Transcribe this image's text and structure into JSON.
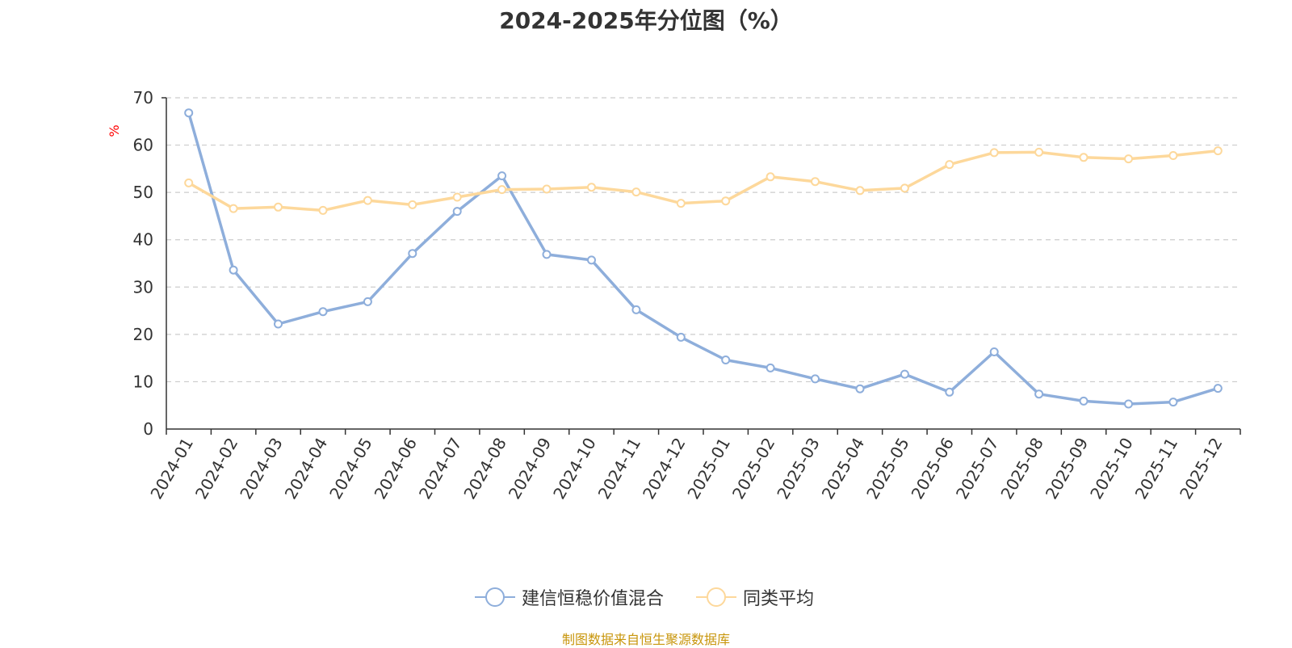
{
  "chart_data": {
    "type": "line",
    "title": "2024-2025年分位图（%）",
    "ylabel": "%",
    "xlabel": "",
    "ylim": [
      0,
      70
    ],
    "yticks": [
      0,
      10,
      20,
      30,
      40,
      50,
      60,
      70
    ],
    "grid": true,
    "legend_position": "bottom",
    "categories": [
      "2024-01",
      "2024-02",
      "2024-03",
      "2024-04",
      "2024-05",
      "2024-06",
      "2024-07",
      "2024-08",
      "2024-09",
      "2024-10",
      "2024-11",
      "2024-12",
      "2025-01",
      "2025-02",
      "2025-03",
      "2025-04",
      "2025-05",
      "2025-06",
      "2025-07",
      "2025-08",
      "2025-09",
      "2025-10",
      "2025-11",
      "2025-12"
    ],
    "series": [
      {
        "name": "建信恒稳价值混合",
        "color": "#8eaedb",
        "values": [
          66.8,
          33.6,
          22.2,
          24.8,
          26.9,
          37.1,
          46.0,
          53.5,
          36.9,
          35.7,
          25.2,
          19.4,
          14.6,
          12.9,
          10.6,
          8.5,
          11.6,
          7.8,
          16.3,
          7.4,
          5.9,
          5.3,
          5.7,
          8.6
        ]
      },
      {
        "name": "同类平均",
        "color": "#fdd89b",
        "values": [
          52.0,
          46.6,
          46.9,
          46.2,
          48.3,
          47.4,
          49.0,
          50.6,
          50.7,
          51.1,
          50.1,
          47.7,
          48.2,
          53.3,
          52.3,
          50.4,
          50.9,
          55.9,
          58.4,
          58.5,
          57.4,
          57.1,
          57.8,
          58.8
        ]
      }
    ]
  },
  "source_text": "制图数据来自恒生聚源数据库"
}
